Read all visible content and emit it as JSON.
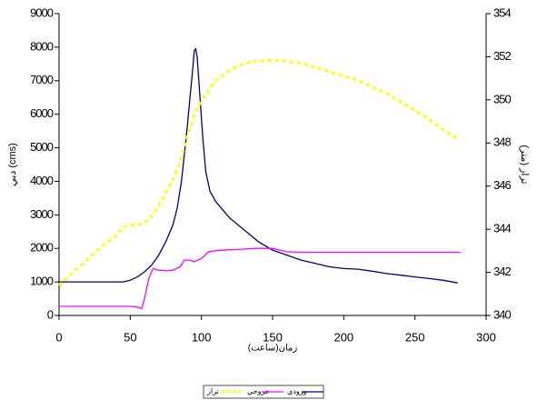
{
  "chart_data": {
    "type": "line",
    "x_label": "زمان(ساعت)",
    "y_label": "دبي (cms)",
    "y2_label": "تراز (متر)",
    "xlim": [
      0,
      300
    ],
    "xticks": [
      0,
      50,
      100,
      150,
      200,
      250,
      300
    ],
    "ylim": [
      0,
      9000
    ],
    "yticks": [
      0,
      1000,
      2000,
      3000,
      4000,
      5000,
      6000,
      7000,
      8000,
      9000
    ],
    "y2lim": [
      340,
      354
    ],
    "y2ticks": [
      340,
      342,
      344,
      346,
      348,
      350,
      352,
      354
    ],
    "series": [
      {
        "name": "ورودي",
        "color": "#000080",
        "dash": false,
        "x": [
          0,
          10,
          20,
          30,
          40,
          45,
          50,
          55,
          60,
          65,
          70,
          75,
          80,
          83,
          86,
          88,
          90,
          92,
          94,
          95,
          96,
          97,
          99,
          101,
          103,
          106,
          110,
          120,
          130,
          140,
          150,
          160,
          170,
          180,
          190,
          200,
          210,
          220,
          230,
          240,
          250,
          260,
          270,
          280
        ],
        "values": [
          1000,
          1000,
          1000,
          1000,
          1000,
          1000,
          1050,
          1150,
          1300,
          1500,
          1800,
          2200,
          2700,
          3200,
          4000,
          4800,
          5600,
          6500,
          7400,
          7900,
          7950,
          7700,
          6500,
          5300,
          4300,
          3700,
          3400,
          2900,
          2550,
          2200,
          1950,
          1800,
          1650,
          1550,
          1450,
          1400,
          1380,
          1320,
          1250,
          1200,
          1150,
          1100,
          1050,
          970
        ]
      },
      {
        "name": "خروجي",
        "color": "#ff00ff",
        "dash": false,
        "x": [
          0,
          50,
          55,
          58,
          60,
          63,
          66,
          70,
          75,
          80,
          85,
          88,
          92,
          95,
          100,
          105,
          110,
          120,
          130,
          140,
          150,
          155,
          160,
          170,
          200,
          250,
          282
        ],
        "values": [
          270,
          270,
          250,
          200,
          500,
          1100,
          1400,
          1350,
          1330,
          1350,
          1450,
          1650,
          1650,
          1600,
          1700,
          1900,
          1930,
          1960,
          1980,
          2000,
          2000,
          1950,
          1900,
          1880,
          1880,
          1880,
          1880
        ]
      },
      {
        "name": "تراز",
        "color": "#ffff00",
        "dash": true,
        "axis": "y2",
        "x": [
          0,
          10,
          20,
          30,
          40,
          45,
          50,
          55,
          60,
          65,
          70,
          75,
          80,
          85,
          90,
          95,
          100,
          110,
          120,
          130,
          140,
          150,
          160,
          170,
          180,
          190,
          200,
          210,
          220,
          230,
          240,
          250,
          260,
          270,
          280
        ],
        "values": [
          341.4,
          342.0,
          342.6,
          343.2,
          343.7,
          344.1,
          344.2,
          344.2,
          344.3,
          344.6,
          345.1,
          345.7,
          346.3,
          347.1,
          348.3,
          349.3,
          350.0,
          350.9,
          351.4,
          351.7,
          351.8,
          351.85,
          351.8,
          351.7,
          351.5,
          351.3,
          351.1,
          350.9,
          350.6,
          350.3,
          349.9,
          349.5,
          349.1,
          348.6,
          348.2
        ]
      }
    ]
  }
}
